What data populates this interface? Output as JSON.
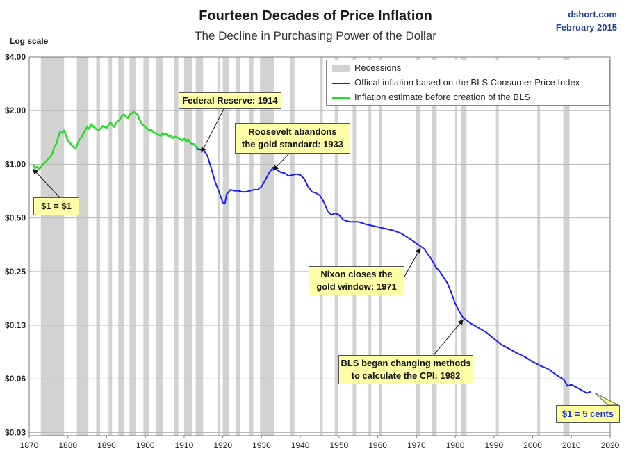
{
  "header": {
    "title": "Fourteen Decades of Price Inflation",
    "subtitle": "The Decline in Purchasing Power of the Dollar",
    "brand": "dshort.com",
    "date": "February 2015",
    "scale_note": "Log scale"
  },
  "colors": {
    "official": "#1a1aff",
    "estimate": "#22dd22",
    "recession": "#d2d2d2",
    "grid": "#b8b8b8",
    "callout_bg": "#ffffa8"
  },
  "legend": {
    "recessions": "Recessions",
    "official": "Offical inflation based on the BLS Consumer Price Index",
    "estimate": "Inflation estimate before creation of the BLS"
  },
  "annotations": {
    "fed": "Federal Reserve: 1914",
    "roosevelt_1": "Roosevelt abandons",
    "roosevelt_2": "the gold standard: 1933",
    "one_dollar": "$1 = $1",
    "nixon_1": "Nixon closes the",
    "nixon_2": "gold window: 1971",
    "bls_1": "BLS began  changing methods",
    "bls_2": "to calculate the CPI: 1982",
    "five_cents": "$1 = 5 cents"
  },
  "chart_data": {
    "type": "line",
    "title": "Fourteen Decades of Price Inflation",
    "subtitle": "The Decline in Purchasing Power of the Dollar",
    "y_scale": "log",
    "ylabel": "Log scale",
    "xlim": [
      1870,
      2020
    ],
    "ylim": [
      0.03,
      4.0
    ],
    "x_ticks": [
      1870,
      1880,
      1890,
      1900,
      1910,
      1920,
      1930,
      1940,
      1950,
      1960,
      1970,
      1980,
      1990,
      2000,
      2010,
      2020
    ],
    "y_ticks": [
      {
        "value": 4.0,
        "label": "$4.00"
      },
      {
        "value": 2.0,
        "label": "$2.00"
      },
      {
        "value": 1.0,
        "label": "$1.00"
      },
      {
        "value": 0.5,
        "label": "$0.50"
      },
      {
        "value": 0.25,
        "label": "$0.25"
      },
      {
        "value": 0.125,
        "label": "$0.13"
      },
      {
        "value": 0.0625,
        "label": "$0.06"
      },
      {
        "value": 0.03125,
        "label": "$0.03"
      }
    ],
    "grid": true,
    "legend_position": "top-right",
    "recessions": [
      [
        1873.0,
        1879.0
      ],
      [
        1882.3,
        1885.3
      ],
      [
        1887.3,
        1888.3
      ],
      [
        1890.5,
        1891.4
      ],
      [
        1893.0,
        1894.5
      ],
      [
        1895.9,
        1897.5
      ],
      [
        1899.5,
        1900.9
      ],
      [
        1902.7,
        1904.6
      ],
      [
        1907.4,
        1908.5
      ],
      [
        1910.0,
        1912.0
      ],
      [
        1913.0,
        1914.9
      ],
      [
        1918.6,
        1919.2
      ],
      [
        1920.0,
        1921.5
      ],
      [
        1923.4,
        1924.5
      ],
      [
        1926.8,
        1927.9
      ],
      [
        1929.6,
        1933.2
      ],
      [
        1937.4,
        1938.5
      ],
      [
        1945.1,
        1945.8
      ],
      [
        1948.9,
        1949.8
      ],
      [
        1953.5,
        1954.4
      ],
      [
        1957.6,
        1958.3
      ],
      [
        1960.3,
        1961.1
      ],
      [
        1969.9,
        1970.9
      ],
      [
        1973.9,
        1975.2
      ],
      [
        1980.0,
        1980.5
      ],
      [
        1981.5,
        1982.9
      ],
      [
        1990.5,
        1991.2
      ],
      [
        2001.2,
        2001.9
      ],
      [
        2007.9,
        2009.5
      ]
    ],
    "series": [
      {
        "name": "Inflation estimate before creation of the BLS",
        "x": [
          1871.0,
          1871.5,
          1872.0,
          1872.5,
          1873.0,
          1873.5,
          1874.0,
          1874.5,
          1875.0,
          1875.5,
          1876.0,
          1876.5,
          1877.0,
          1877.5,
          1878.0,
          1878.5,
          1879.0,
          1879.5,
          1880.0,
          1880.5,
          1881.0,
          1881.5,
          1882.0,
          1882.5,
          1883.0,
          1883.5,
          1884.0,
          1884.5,
          1885.0,
          1885.5,
          1886.0,
          1886.5,
          1887.0,
          1887.5,
          1888.0,
          1888.5,
          1889.0,
          1889.5,
          1890.0,
          1890.5,
          1891.0,
          1891.5,
          1892.0,
          1892.5,
          1893.0,
          1893.5,
          1894.0,
          1894.5,
          1895.0,
          1895.5,
          1896.0,
          1896.5,
          1897.0,
          1897.5,
          1898.0,
          1898.5,
          1899.0,
          1899.5,
          1900.0,
          1900.5,
          1901.0,
          1901.5,
          1902.0,
          1902.5,
          1903.0,
          1903.5,
          1904.0,
          1904.5,
          1905.0,
          1905.5,
          1906.0,
          1906.5,
          1907.0,
          1907.5,
          1908.0,
          1908.5,
          1909.0,
          1909.5,
          1910.0,
          1910.5,
          1911.0,
          1911.5,
          1912.0,
          1912.5,
          1913.0,
          1913.5,
          1914.0
        ],
        "values": [
          1.0,
          0.95,
          0.97,
          0.94,
          0.96,
          1.0,
          1.02,
          1.05,
          1.08,
          1.1,
          1.15,
          1.25,
          1.3,
          1.42,
          1.52,
          1.5,
          1.55,
          1.45,
          1.35,
          1.32,
          1.28,
          1.25,
          1.23,
          1.3,
          1.38,
          1.42,
          1.48,
          1.56,
          1.62,
          1.58,
          1.68,
          1.63,
          1.6,
          1.57,
          1.56,
          1.59,
          1.64,
          1.62,
          1.6,
          1.66,
          1.72,
          1.65,
          1.62,
          1.72,
          1.75,
          1.8,
          1.88,
          1.9,
          1.85,
          1.82,
          1.91,
          1.93,
          1.97,
          1.93,
          1.9,
          1.78,
          1.7,
          1.65,
          1.62,
          1.58,
          1.55,
          1.56,
          1.52,
          1.5,
          1.48,
          1.46,
          1.44,
          1.5,
          1.46,
          1.48,
          1.44,
          1.45,
          1.4,
          1.43,
          1.42,
          1.4,
          1.38,
          1.36,
          1.4,
          1.34,
          1.38,
          1.33,
          1.3,
          1.3,
          1.26,
          1.23,
          1.22
        ]
      },
      {
        "name": "Offical inflation based on the BLS Consumer Price Index",
        "x": [
          1913.0,
          1914.0,
          1915.0,
          1916.0,
          1917.0,
          1918.0,
          1919.0,
          1920.0,
          1920.5,
          1921.0,
          1922.0,
          1923.0,
          1924.0,
          1925.0,
          1926.0,
          1927.0,
          1928.0,
          1929.0,
          1930.0,
          1931.0,
          1932.0,
          1933.0,
          1934.0,
          1935.0,
          1936.0,
          1937.0,
          1938.0,
          1939.0,
          1940.0,
          1941.0,
          1942.0,
          1943.0,
          1944.0,
          1945.0,
          1946.0,
          1947.0,
          1948.0,
          1949.0,
          1950.0,
          1951.0,
          1952.0,
          1953.0,
          1955.0,
          1957.0,
          1960.0,
          1962.0,
          1964.0,
          1966.0,
          1968.0,
          1970.0,
          1972.0,
          1974.0,
          1975.0,
          1976.0,
          1978.0,
          1979.0,
          1980.0,
          1981.0,
          1982.0,
          1984.0,
          1986.0,
          1988.0,
          1990.0,
          1992.0,
          1994.0,
          1996.0,
          1998.0,
          2000.0,
          2002.0,
          2004.0,
          2006.0,
          2008.0,
          2009.0,
          2010.0,
          2012.0,
          2014.0,
          2015.0
        ],
        "values": [
          1.22,
          1.21,
          1.2,
          1.12,
          0.95,
          0.8,
          0.7,
          0.61,
          0.6,
          0.68,
          0.72,
          0.71,
          0.71,
          0.7,
          0.7,
          0.71,
          0.72,
          0.72,
          0.75,
          0.82,
          0.9,
          0.96,
          0.93,
          0.9,
          0.89,
          0.86,
          0.87,
          0.88,
          0.87,
          0.83,
          0.75,
          0.7,
          0.69,
          0.67,
          0.62,
          0.55,
          0.52,
          0.53,
          0.52,
          0.49,
          0.48,
          0.475,
          0.475,
          0.46,
          0.445,
          0.435,
          0.425,
          0.41,
          0.385,
          0.36,
          0.335,
          0.29,
          0.265,
          0.25,
          0.215,
          0.19,
          0.165,
          0.15,
          0.138,
          0.128,
          0.121,
          0.114,
          0.105,
          0.097,
          0.092,
          0.087,
          0.083,
          0.078,
          0.074,
          0.071,
          0.066,
          0.062,
          0.057,
          0.058,
          0.055,
          0.052,
          0.053
        ]
      }
    ]
  }
}
